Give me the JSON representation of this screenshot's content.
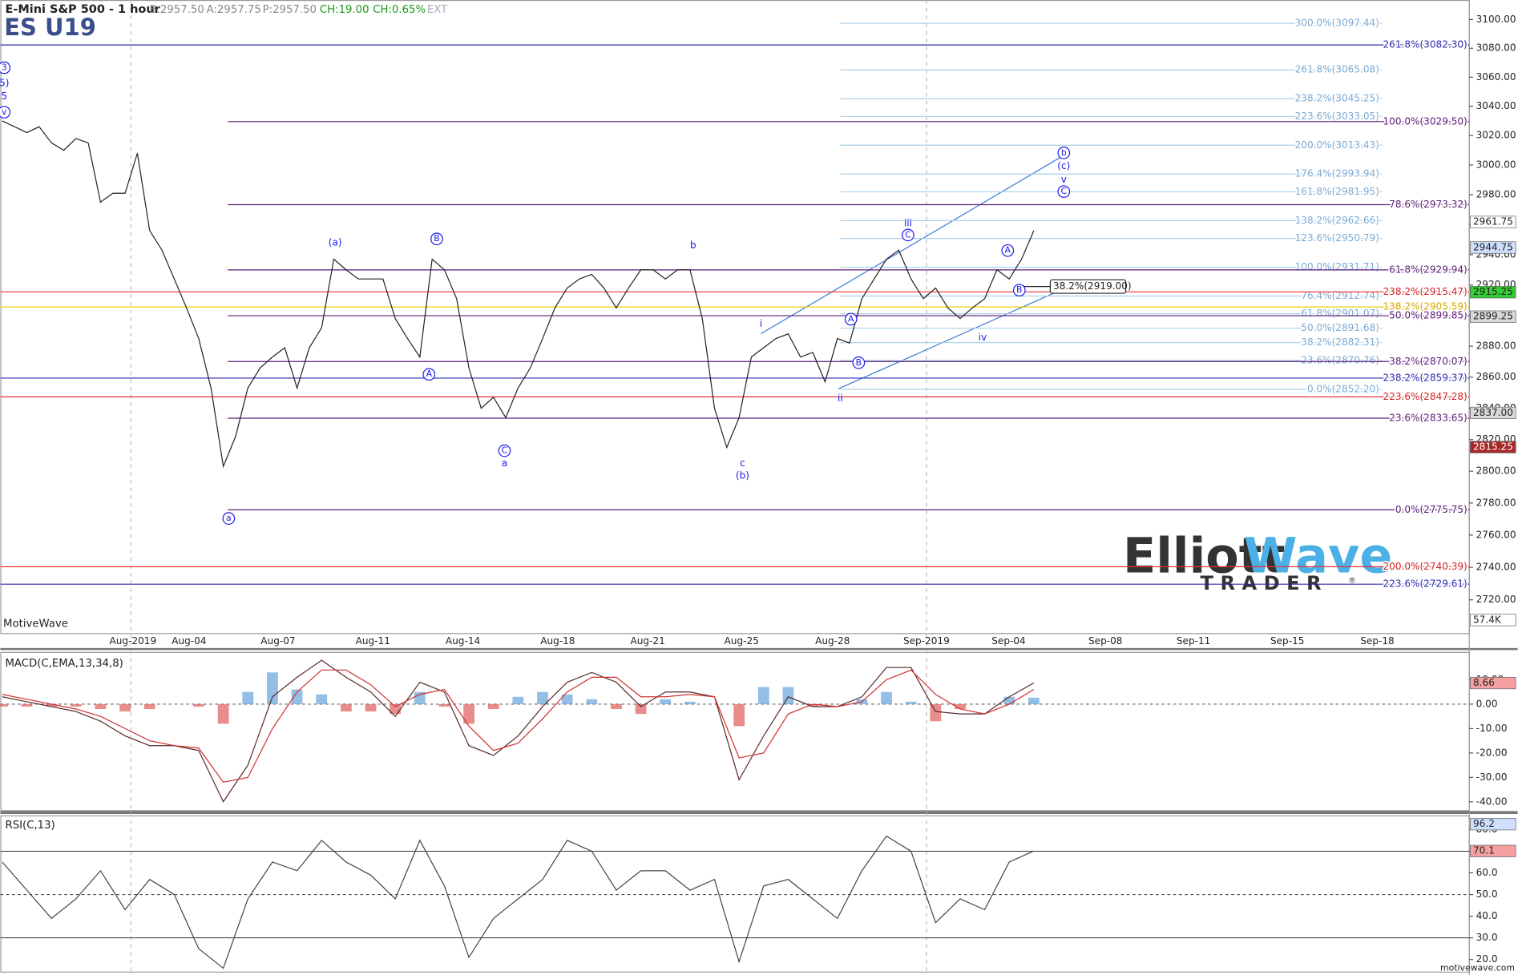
{
  "header": {
    "instrument": "E-Mini S&P 500 - 1 hour",
    "bid": "B:2957.50",
    "ask": "A:2957.75",
    "price": "P:2957.50",
    "change": "CH:19.00",
    "change_pct": "CH:0.65%",
    "session": "EXT"
  },
  "logo": {
    "name_1": "Elliott",
    "name_2": "Wave",
    "tagline": "TRADER",
    "mark": "®"
  },
  "footer": "motivewave.com",
  "chart_data": [
    {
      "type": "line",
      "title": "ES U19",
      "watermark": "MotiveWave",
      "log_scale": true,
      "ylim": [
        2700,
        3113
      ],
      "yticks": [
        {
          "value": 2720,
          "label": "2720.00"
        },
        {
          "value": 2740,
          "label": "2740.00"
        },
        {
          "value": 2760,
          "label": "2760.00"
        },
        {
          "value": 2780,
          "label": "2780.00"
        },
        {
          "value": 2800,
          "label": "2800.00"
        },
        {
          "value": 2820,
          "label": "2820.00"
        },
        {
          "value": 2840,
          "label": "2840.00"
        },
        {
          "value": 2860,
          "label": "2860.00"
        },
        {
          "value": 2880,
          "label": "2880.00"
        },
        {
          "value": 2900,
          "label": "2900.00"
        },
        {
          "value": 2920,
          "label": "2920.00"
        },
        {
          "value": 2940,
          "label": "2940.00"
        },
        {
          "value": 2960,
          "label": "2960.00"
        },
        {
          "value": 2980,
          "label": "2980.00"
        },
        {
          "value": 3000,
          "label": "3000.00"
        },
        {
          "value": 3020,
          "label": "3020.00"
        },
        {
          "value": 3040,
          "label": "3040.00"
        },
        {
          "value": 3060,
          "label": "3060.00"
        },
        {
          "value": 3080,
          "label": "3080.00"
        },
        {
          "value": 3100,
          "label": "3100.00"
        }
      ],
      "color": "#222222",
      "values": [
        3030,
        3026,
        3022,
        3026,
        3015,
        3010,
        3018,
        3015,
        2975,
        2981,
        2981,
        3008,
        2956,
        2943,
        2924,
        2905,
        2885,
        2853,
        2803,
        2822,
        2853,
        2866,
        2873,
        2879,
        2853,
        2879,
        2892,
        2937,
        2930,
        2924,
        2924,
        2924,
        2898,
        2885,
        2873,
        2937,
        2930,
        2911,
        2866,
        2840,
        2847,
        2834,
        2853,
        2866,
        2885,
        2905,
        2918,
        2924,
        2927,
        2918,
        2905,
        2918,
        2930,
        2930,
        2924,
        2930,
        2930,
        2898,
        2840,
        2815,
        2834,
        2873,
        2879,
        2885,
        2888,
        2873,
        2876,
        2857,
        2885,
        2882,
        2911,
        2924,
        2937,
        2943,
        2924,
        2911,
        2918,
        2905,
        2898,
        2905,
        2911,
        2930,
        2924,
        2937,
        2956
      ],
      "date_labels": [
        "Aug-2019",
        "Aug-04",
        "Aug-07",
        "Aug-11",
        "Aug-14",
        "Aug-18",
        "Aug-21",
        "Aug-25",
        "Aug-28",
        "Sep-2019",
        "Sep-04",
        "Sep-08",
        "Sep-11",
        "Sep-15",
        "Sep-18"
      ],
      "fib_levels": {
        "light": {
          "color": "#a9cfe8",
          "text_color": "#7aa9d2",
          "levels": [
            {
              "label": "300.0%(3097.44)",
              "value": 3097.44
            },
            {
              "label": "261.8%(3065.08)",
              "value": 3065.08
            },
            {
              "label": "238.2%(3045.25)",
              "value": 3045.25
            },
            {
              "label": "223.6%(3033.05)",
              "value": 3033.05
            },
            {
              "label": "200.0%(3013.43)",
              "value": 3013.43
            },
            {
              "label": "176.4%(2993.94)",
              "value": 2993.94
            },
            {
              "label": "161.8%(2981.95)",
              "value": 2981.95
            },
            {
              "label": "138.2%(2962.66)",
              "value": 2962.66
            },
            {
              "label": "123.6%(2950.79)",
              "value": 2950.79
            },
            {
              "label": "100.0%(2931.71)",
              "value": 2931.71
            },
            {
              "label": "76.4%(2912.74)",
              "value": 2912.74
            },
            {
              "label": "61.8%(2901.07)",
              "value": 2901.07
            },
            {
              "label": "50.0%(2891.68)",
              "value": 2891.68
            },
            {
              "label": "38.2%(2882.31)",
              "value": 2882.31
            },
            {
              "label": "23.6%(2870.76)",
              "value": 2870.76
            },
            {
              "label": "0.0%(2852.20)",
              "value": 2852.2
            }
          ]
        },
        "purple": {
          "color": "#5b1a78",
          "text_color": "#5b1a78",
          "levels": [
            {
              "label": "100.0%(3029.50)",
              "value": 3029.5
            },
            {
              "label": "78.6%(2973.32)",
              "value": 2973.32
            },
            {
              "label": "61.8%(2929.94)",
              "value": 2929.94
            },
            {
              "label": "50.0%(2899.85)",
              "value": 2899.85
            },
            {
              "label": "38.2%(2870.07)",
              "value": 2870.07
            },
            {
              "label": "23.6%(2833.65)",
              "value": 2833.65
            },
            {
              "label": "0.0%(2775.75)",
              "value": 2775.75
            }
          ]
        },
        "red": {
          "color": "#e83030",
          "text_color": "#d42020",
          "levels": [
            {
              "label": "238.2%(2915.47)",
              "value": 2915.47
            },
            {
              "label": "223.6%(2847.28)",
              "value": 2847.28
            },
            {
              "label": "200.0%(2740.39)",
              "value": 2740.39
            }
          ]
        },
        "navy": {
          "color": "#2b2bb0",
          "text_color": "#2b2bb0",
          "levels": [
            {
              "label": "261.8%(3082.30)",
              "value": 3082.3
            },
            {
              "label": "238.2%(2859.37)",
              "value": 2859.37
            },
            {
              "label": "223.6%(2729.61)",
              "value": 2729.61
            }
          ]
        },
        "gold": {
          "color": "#e8d000",
          "text_color": "#d8a800",
          "levels": [
            {
              "label": "138.2%(2905.59)",
              "value": 2905.59
            }
          ]
        }
      },
      "box_label": {
        "label": "38.2%(2919.00)",
        "value": 2919
      },
      "wave_color": "#1a1aee",
      "wave_labels": [
        {
          "text": "(a)",
          "circled": false
        },
        {
          "text": "B",
          "circled": true
        },
        {
          "text": "A",
          "circled": true
        },
        {
          "text": "C",
          "circled": true
        },
        {
          "text": "a",
          "circled": false
        },
        {
          "text": "b",
          "circled": false
        },
        {
          "text": "c",
          "circled": false
        },
        {
          "text": "(b)",
          "circled": false
        },
        {
          "text": "a",
          "circled": true
        },
        {
          "text": "i",
          "circled": false
        },
        {
          "text": "ii",
          "circled": false
        },
        {
          "text": "A",
          "circled": true
        },
        {
          "text": "B",
          "circled": true
        },
        {
          "text": "iii",
          "circled": false
        },
        {
          "text": "C",
          "circled": true
        },
        {
          "text": "A",
          "circled": true
        },
        {
          "text": "B",
          "circled": true
        },
        {
          "text": "iv",
          "circled": false
        },
        {
          "text": "b",
          "circled": true
        },
        {
          "text": "(c)",
          "circled": false
        },
        {
          "text": "v",
          "circled": false
        },
        {
          "text": "C",
          "circled": true
        },
        {
          "text": "3",
          "circled": true
        },
        {
          "text": "5)",
          "circled": false
        },
        {
          "text": "5",
          "circled": false
        },
        {
          "text": "v",
          "circled": true
        }
      ],
      "price_tags": [
        {
          "value": 2961.75,
          "label": "2961.75",
          "fill": "#ffffff",
          "text_color": "#222222"
        },
        {
          "value": 2944.75,
          "label": "2944.75",
          "fill": "#cfe0ff",
          "text_color": "#222222"
        },
        {
          "value": 2915.25,
          "label": "2915.25",
          "fill": "#33cc33",
          "text_color": "#222222"
        },
        {
          "value": 2899.25,
          "label": "2899.25",
          "fill": "#d8d8d8",
          "text_color": "#222222"
        },
        {
          "value": 2837,
          "label": "2837.00",
          "fill": "#d8d8d8",
          "text_color": "#222222"
        },
        {
          "value": 2815.25,
          "label": "2815.25",
          "fill": "#a82828",
          "text_color": "#ffffff"
        }
      ],
      "volume_tag": "57.4K"
    },
    {
      "type": "line",
      "title": "MACD(C,EMA,13,34,8)",
      "ylim": [
        -43.6,
        20.6
      ],
      "yticks": [
        {
          "value": 10,
          "label": "10.00"
        },
        {
          "value": 0,
          "label": "0.00"
        },
        {
          "value": -10,
          "label": "-10.00"
        },
        {
          "value": -20,
          "label": "-20.00"
        },
        {
          "value": -30,
          "label": "-30.00"
        },
        {
          "value": -40,
          "label": "-40.00"
        }
      ],
      "dashed_ref_lines": [
        0
      ],
      "series": [
        {
          "style": "bar",
          "color": "#6fa8dc",
          "negative_color": "#e06666",
          "values": [
            -1,
            -1,
            -1,
            -1,
            -2,
            -3,
            -2,
            0,
            -1,
            -8,
            5,
            13,
            6,
            4,
            -3,
            -3,
            -4,
            5,
            -1,
            -8,
            -2,
            3,
            5,
            4,
            2,
            -2,
            -4,
            2,
            1,
            0,
            -9,
            7,
            7,
            -1,
            0,
            2,
            5,
            1,
            -7,
            -2,
            0,
            3,
            2.66
          ]
        },
        {
          "style": "line",
          "color": "#5a2a2a",
          "values": [
            3,
            1,
            -1,
            -3,
            -7,
            -13,
            -17,
            -17,
            -19,
            -40,
            -25,
            3,
            11,
            18,
            11,
            5,
            -5,
            9,
            5,
            -17,
            -21,
            -13,
            -1,
            9,
            13,
            9,
            -1,
            5,
            5,
            3,
            -31,
            -13,
            3,
            -1,
            -1,
            3,
            15,
            15,
            -3,
            -4,
            -4,
            3,
            8.66
          ]
        },
        {
          "style": "line",
          "color": "#d03030",
          "values": [
            4,
            2,
            0,
            -2,
            -5,
            -10,
            -15,
            -17,
            -18,
            -32,
            -30,
            -10,
            5,
            14,
            14,
            8,
            -1,
            4,
            6,
            -9,
            -19,
            -16,
            -6,
            5,
            11,
            11,
            3,
            3,
            4,
            3,
            -22,
            -20,
            -4,
            0,
            -1,
            1,
            10,
            14,
            4,
            -2,
            -4,
            0,
            6
          ]
        }
      ],
      "tags": [
        {
          "value": 8.66,
          "label": "8.66",
          "fill": "#f4a0a0",
          "text_color": "#222222"
        }
      ]
    },
    {
      "type": "line",
      "title": "RSI(C,13)",
      "ylim": [
        14.2,
        85.2
      ],
      "yticks": [
        {
          "value": 20,
          "label": "20.0"
        },
        {
          "value": 30,
          "label": "30.0"
        },
        {
          "value": 40,
          "label": "40.0"
        },
        {
          "value": 50,
          "label": "50.0"
        },
        {
          "value": 60,
          "label": "60.0"
        },
        {
          "value": 70,
          "label": "70.0"
        },
        {
          "value": 80,
          "label": "80.0"
        }
      ],
      "ref_lines": [
        30,
        70
      ],
      "dashed_ref_lines": [
        50
      ],
      "series": [
        {
          "style": "line",
          "color": "#444444",
          "values": [
            65,
            52,
            39,
            48,
            61,
            43,
            57,
            50,
            25,
            16,
            48,
            65,
            61,
            75,
            65,
            59,
            48,
            75,
            54,
            21,
            39,
            48,
            57,
            75,
            70,
            52,
            61,
            61,
            52,
            57,
            19,
            54,
            57,
            48,
            39,
            61,
            77,
            70,
            37,
            48,
            43,
            65,
            70.1
          ]
        }
      ],
      "tags": [
        {
          "value": 96.2,
          "label": "96.2",
          "fill": "#cfe0ff",
          "text_color": "#222222"
        },
        {
          "value": 70.1,
          "label": "70.1",
          "fill": "#f4a0a0",
          "text_color": "#222222"
        }
      ]
    }
  ]
}
